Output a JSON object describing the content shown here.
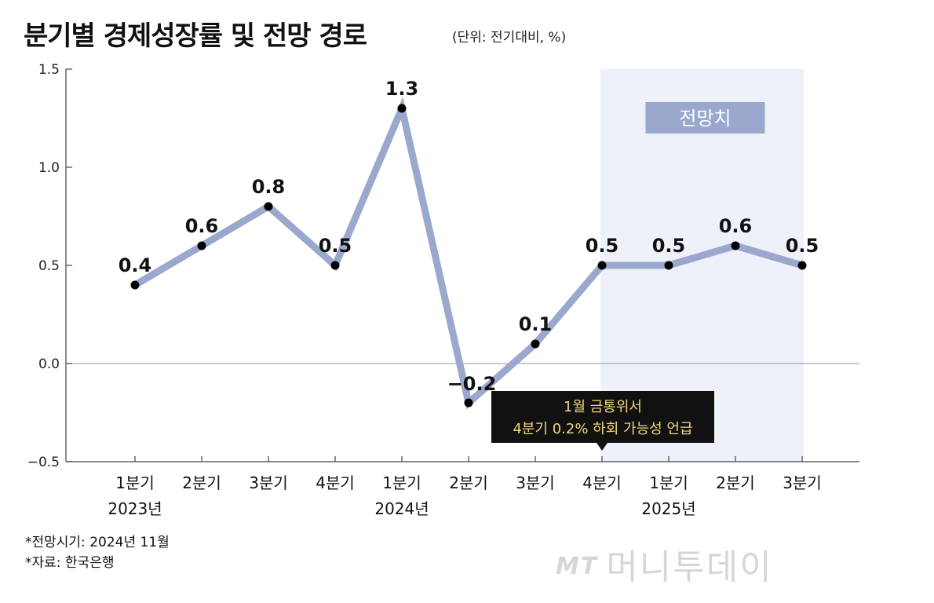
{
  "title": "분기별 경제성장률 및 전망 경로",
  "unit": "(단위: 전기대비, %)",
  "chart_data": {
    "type": "line",
    "categories": [
      "1분기",
      "2분기",
      "3분기",
      "4분기",
      "1분기",
      "2분기",
      "3분기",
      "4분기",
      "1분기",
      "2분기",
      "3분기"
    ],
    "year_labels": [
      {
        "index": 0,
        "label": "2023년"
      },
      {
        "index": 4,
        "label": "2024년"
      },
      {
        "index": 8,
        "label": "2025년"
      }
    ],
    "values": [
      0.4,
      0.6,
      0.8,
      0.5,
      1.3,
      -0.2,
      0.1,
      0.5,
      0.5,
      0.6,
      0.5
    ],
    "value_labels": [
      "0.4",
      "0.6",
      "0.8",
      "0.5",
      "1.3",
      "−0.2",
      "0.1",
      "0.5",
      "0.5",
      "0.6",
      "0.5"
    ],
    "ylim": [
      -0.5,
      1.5
    ],
    "yticks": [
      1.5,
      1.0,
      0.5,
      0.0,
      -0.5
    ],
    "ytick_labels": [
      "1.5",
      "1.0",
      "0.5",
      "0.0",
      "−0.5"
    ],
    "forecast_start_index": 7,
    "forecast_label": "전망치",
    "annotation": {
      "index": 7,
      "lines": [
        "1월 금통위서",
        "4분기 0.2% 하회 가능성 언급"
      ]
    },
    "line_color": "#99a8cc",
    "forecast_bg_color": "#eef0fa",
    "grid": false
  },
  "notes": [
    "*전망시기: 2024년 11월",
    "*자료: 한국은행"
  ],
  "watermark": {
    "mt": "MT",
    "name": "머니투데이"
  }
}
